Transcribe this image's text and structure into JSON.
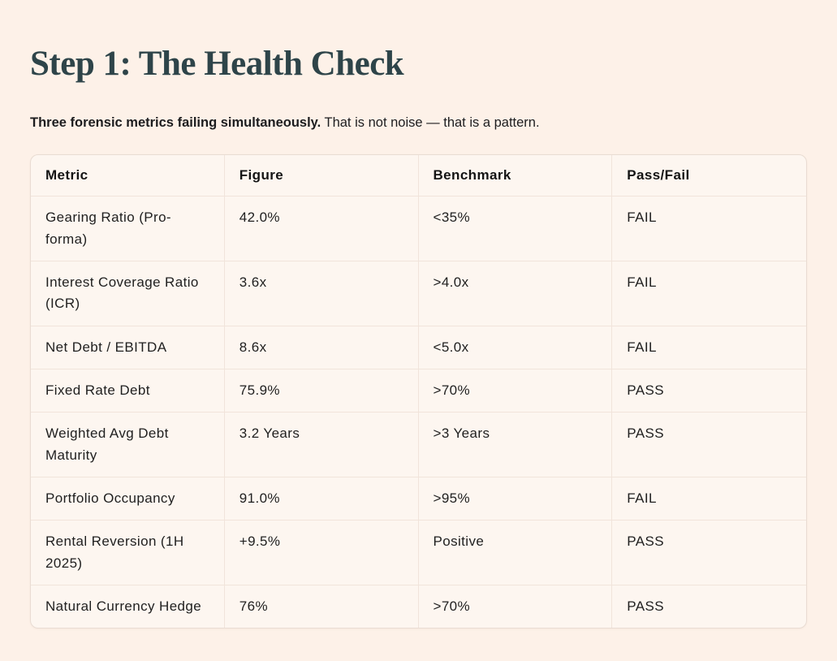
{
  "page": {
    "title": "Step 1: The Health Check",
    "intro_bold": "Three forensic metrics failing simultaneously.",
    "intro_rest": " That is not noise — that is a pattern."
  },
  "table": {
    "columns": [
      "Metric",
      "Figure",
      "Benchmark",
      "Pass/Fail"
    ],
    "rows": [
      {
        "metric": "Gearing Ratio (Pro-forma)",
        "figure": "42.0%",
        "benchmark": "<35%",
        "status": "FAIL"
      },
      {
        "metric": "Interest Coverage Ratio (ICR)",
        "figure": "3.6x",
        "benchmark": ">4.0x",
        "status": "FAIL"
      },
      {
        "metric": "Net Debt / EBITDA",
        "figure": "8.6x",
        "benchmark": "<5.0x",
        "status": "FAIL"
      },
      {
        "metric": "Fixed Rate Debt",
        "figure": "75.9%",
        "benchmark": ">70%",
        "status": "PASS"
      },
      {
        "metric": "Weighted Avg Debt Maturity",
        "figure": "3.2 Years",
        "benchmark": ">3 Years",
        "status": "PASS"
      },
      {
        "metric": "Portfolio Occupancy",
        "figure": "91.0%",
        "benchmark": ">95%",
        "status": "FAIL"
      },
      {
        "metric": "Rental Reversion (1H 2025)",
        "figure": "+9.5%",
        "benchmark": "Positive",
        "status": "PASS"
      },
      {
        "metric": "Natural Currency Hedge",
        "figure": "76%",
        "benchmark": ">70%",
        "status": "PASS"
      }
    ]
  },
  "colors": {
    "page_background": "#fdf1e8",
    "table_background": "#fdf6f0",
    "table_border": "#e9dcd3",
    "cell_border": "#f1e4db",
    "title": "#2e4449",
    "text": "#1f1f1f"
  }
}
